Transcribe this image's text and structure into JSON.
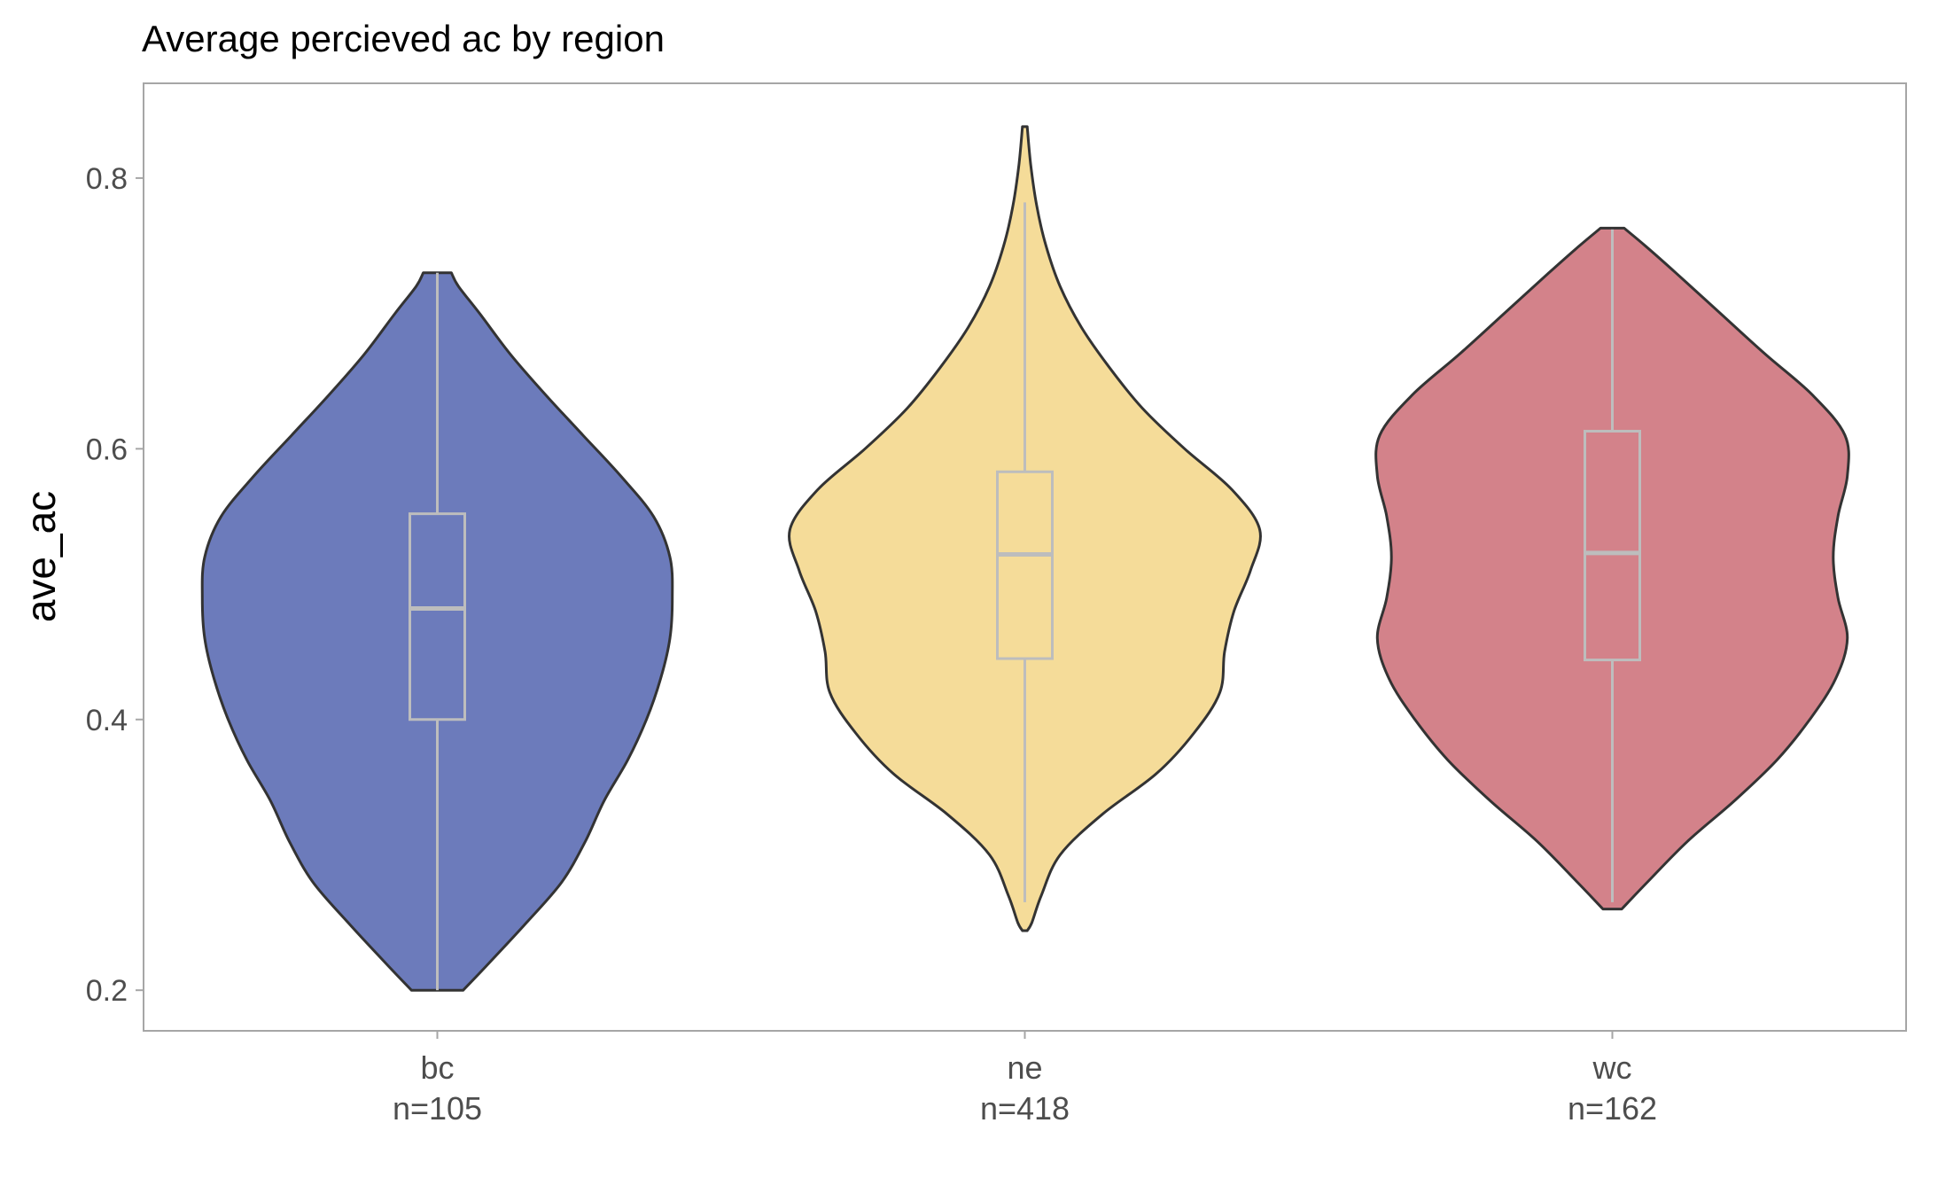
{
  "chart_data": {
    "type": "violin",
    "title": "Average percieved ac by region",
    "xlabel": "",
    "ylabel": "ave_ac",
    "ylim": [
      0.17,
      0.87
    ],
    "yticks": [
      {
        "value": 0.2,
        "label": "0.2"
      },
      {
        "value": 0.4,
        "label": "0.4"
      },
      {
        "value": 0.6,
        "label": "0.6"
      },
      {
        "value": 0.8,
        "label": "0.8"
      }
    ],
    "grid": false,
    "legend": "none",
    "box_color": "#bdbdbd",
    "outline_color": "#333333",
    "categories": [
      {
        "name": "bc",
        "count_label": "n=105",
        "color": "#6c7bbb",
        "box": {
          "q1": 0.4,
          "median": 0.482,
          "q3": 0.552,
          "whisker_low": 0.2,
          "whisker_high": 0.73
        },
        "density": [
          [
            0.2,
            0.11
          ],
          [
            0.22,
            0.22
          ],
          [
            0.25,
            0.38
          ],
          [
            0.28,
            0.53
          ],
          [
            0.31,
            0.63
          ],
          [
            0.34,
            0.71
          ],
          [
            0.37,
            0.81
          ],
          [
            0.4,
            0.89
          ],
          [
            0.43,
            0.95
          ],
          [
            0.46,
            0.99
          ],
          [
            0.49,
            1.0
          ],
          [
            0.52,
            0.99
          ],
          [
            0.55,
            0.92
          ],
          [
            0.58,
            0.78
          ],
          [
            0.61,
            0.62
          ],
          [
            0.64,
            0.46
          ],
          [
            0.67,
            0.31
          ],
          [
            0.7,
            0.18
          ],
          [
            0.72,
            0.09
          ],
          [
            0.73,
            0.06
          ]
        ]
      },
      {
        "name": "ne",
        "count_label": "n=418",
        "color": "#f5dc99",
        "box": {
          "q1": 0.445,
          "median": 0.522,
          "q3": 0.583,
          "whisker_low": 0.265,
          "whisker_high": 0.782
        },
        "density": [
          [
            0.244,
            0.01
          ],
          [
            0.25,
            0.03
          ],
          [
            0.27,
            0.07
          ],
          [
            0.3,
            0.15
          ],
          [
            0.33,
            0.33
          ],
          [
            0.36,
            0.56
          ],
          [
            0.39,
            0.72
          ],
          [
            0.42,
            0.83
          ],
          [
            0.45,
            0.85
          ],
          [
            0.48,
            0.89
          ],
          [
            0.51,
            0.96
          ],
          [
            0.54,
            1.0
          ],
          [
            0.57,
            0.88
          ],
          [
            0.6,
            0.68
          ],
          [
            0.63,
            0.5
          ],
          [
            0.66,
            0.36
          ],
          [
            0.69,
            0.24
          ],
          [
            0.72,
            0.15
          ],
          [
            0.75,
            0.09
          ],
          [
            0.78,
            0.05
          ],
          [
            0.81,
            0.025
          ],
          [
            0.838,
            0.01
          ]
        ]
      },
      {
        "name": "wc",
        "count_label": "n=162",
        "color": "#d3828a",
        "box": {
          "q1": 0.444,
          "median": 0.523,
          "q3": 0.613,
          "whisker_low": 0.265,
          "whisker_high": 0.762
        },
        "density": [
          [
            0.26,
            0.04
          ],
          [
            0.28,
            0.15
          ],
          [
            0.31,
            0.32
          ],
          [
            0.34,
            0.52
          ],
          [
            0.37,
            0.7
          ],
          [
            0.4,
            0.84
          ],
          [
            0.43,
            0.95
          ],
          [
            0.46,
            1.0
          ],
          [
            0.49,
            0.96
          ],
          [
            0.52,
            0.94
          ],
          [
            0.55,
            0.96
          ],
          [
            0.58,
            1.0
          ],
          [
            0.61,
            0.99
          ],
          [
            0.64,
            0.85
          ],
          [
            0.67,
            0.65
          ],
          [
            0.7,
            0.46
          ],
          [
            0.73,
            0.27
          ],
          [
            0.75,
            0.14
          ],
          [
            0.763,
            0.05
          ]
        ]
      }
    ]
  }
}
